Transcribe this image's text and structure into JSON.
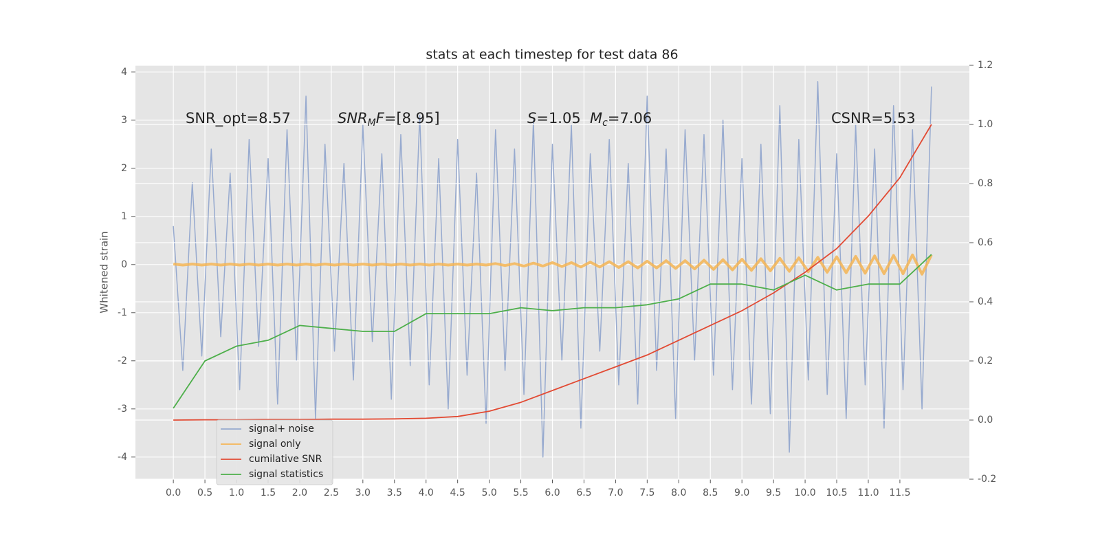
{
  "chart_data": {
    "type": "line",
    "title": "stats at each timestep for test data 86",
    "ylabel": "Whitened strain",
    "xlim": [
      -0.6,
      12.6
    ],
    "ylim": [
      -4.46,
      4.14
    ],
    "y2lim": [
      -0.2,
      1.2
    ],
    "xticks": [
      {
        "value": 0,
        "label": "0.0"
      },
      0.5,
      {
        "value": 1,
        "label": "1.0"
      },
      1.5,
      {
        "value": 2,
        "label": "2.0"
      },
      2.5,
      {
        "value": 3,
        "label": "3.0"
      },
      3.5,
      {
        "value": 4,
        "label": "4.0"
      },
      4.5,
      {
        "value": 5,
        "label": "5.0"
      },
      5.5,
      {
        "value": 6,
        "label": "6.0"
      },
      6.5,
      {
        "value": 7,
        "label": "7.0"
      },
      7.5,
      {
        "value": 8,
        "label": "8.0"
      },
      8.5,
      {
        "value": 9,
        "label": "9.0"
      },
      9.5,
      {
        "value": 10,
        "label": "10.0"
      },
      10.5,
      {
        "value": 11,
        "label": "11.0"
      },
      11.5
    ],
    "yticks": [
      -4,
      -3,
      -2,
      -1,
      0,
      1,
      2,
      3,
      4
    ],
    "y2ticks": [
      -0.2,
      {
        "value": 0,
        "label": "0.0"
      },
      0.2,
      0.4,
      0.6,
      0.8,
      {
        "value": 1,
        "label": "1.0"
      },
      1.2
    ],
    "grid": true,
    "legend": "lower left",
    "annotations": [
      [
        {
          "text": "SNR_opt=8.57"
        }
      ],
      [
        {
          "text": "SNR",
          "style": "italic"
        },
        {
          "text": "M",
          "style": "sub-italic"
        },
        {
          "text": "F",
          "style": "italic"
        },
        {
          "text": "=[8.95]"
        }
      ],
      [
        {
          "text": "S",
          "style": "italic"
        },
        {
          "text": "=1.05"
        }
      ],
      [
        {
          "text": "M",
          "style": "italic"
        },
        {
          "text": "c",
          "style": "sub-italic"
        },
        {
          "text": "=7.06"
        }
      ],
      [
        {
          "text": "CSNR=5.53"
        }
      ]
    ],
    "series": [
      {
        "name": "signal+ noise",
        "color": "#97aacf",
        "x": [
          0,
          0.15,
          0.3,
          0.45,
          0.6,
          0.75,
          0.9,
          1.05,
          1.2,
          1.35,
          1.5,
          1.65,
          1.8,
          1.95,
          2.1,
          2.25,
          2.4,
          2.55,
          2.7,
          2.85,
          3,
          3.15,
          3.3,
          3.45,
          3.6,
          3.75,
          3.9,
          4.05,
          4.2,
          4.35,
          4.5,
          4.65,
          4.8,
          4.95,
          5.1,
          5.25,
          5.4,
          5.55,
          5.7,
          5.85,
          6,
          6.15,
          6.3,
          6.45,
          6.6,
          6.75,
          6.9,
          7.05,
          7.2,
          7.35,
          7.5,
          7.65,
          7.8,
          7.95,
          8.1,
          8.25,
          8.4,
          8.55,
          8.7,
          8.85,
          9,
          9.15,
          9.3,
          9.45,
          9.6,
          9.75,
          9.9,
          10.05,
          10.2,
          10.35,
          10.5,
          10.65,
          10.8,
          10.95,
          11.1,
          11.25,
          11.4,
          11.55,
          11.7,
          11.85,
          12
        ],
        "values": [
          0.8,
          -2.2,
          1.7,
          -1.9,
          2.4,
          -1.5,
          1.9,
          -2.6,
          2.6,
          -1.7,
          2.2,
          -2.9,
          2.8,
          -2.0,
          3.5,
          -3.2,
          2.5,
          -1.8,
          2.1,
          -2.4,
          2.9,
          -1.6,
          2.3,
          -2.8,
          2.7,
          -2.1,
          3.1,
          -2.5,
          2.2,
          -3.0,
          2.6,
          -2.3,
          1.9,
          -3.3,
          2.8,
          -2.2,
          2.4,
          -2.7,
          3.0,
          -4.0,
          2.5,
          -2.0,
          2.9,
          -3.4,
          2.3,
          -1.8,
          2.6,
          -2.5,
          2.1,
          -2.9,
          3.5,
          -2.2,
          2.4,
          -3.2,
          2.8,
          -2.0,
          2.7,
          -2.3,
          3.0,
          -2.6,
          2.2,
          -2.9,
          2.5,
          -3.1,
          3.3,
          -3.9,
          2.6,
          -2.4,
          3.8,
          -2.7,
          2.3,
          -3.2,
          2.9,
          -2.5,
          2.4,
          -3.4,
          3.3,
          -2.6,
          2.8,
          -3.0,
          3.7
        ]
      },
      {
        "name": "signal only",
        "color": "#f5b555",
        "x": [
          0,
          0.15,
          0.3,
          0.45,
          0.6,
          0.75,
          0.9,
          1.05,
          1.2,
          1.35,
          1.5,
          1.65,
          1.8,
          1.95,
          2.1,
          2.25,
          2.4,
          2.55,
          2.7,
          2.85,
          3,
          3.15,
          3.3,
          3.45,
          3.6,
          3.75,
          3.9,
          4.05,
          4.2,
          4.35,
          4.5,
          4.65,
          4.8,
          4.95,
          5.1,
          5.25,
          5.4,
          5.55,
          5.7,
          5.85,
          6,
          6.15,
          6.3,
          6.45,
          6.6,
          6.75,
          6.9,
          7.05,
          7.2,
          7.35,
          7.5,
          7.65,
          7.8,
          7.95,
          8.1,
          8.25,
          8.4,
          8.55,
          8.7,
          8.85,
          9,
          9.15,
          9.3,
          9.45,
          9.6,
          9.75,
          9.9,
          10.05,
          10.2,
          10.35,
          10.5,
          10.65,
          10.8,
          10.95,
          11.1,
          11.25,
          11.4,
          11.55,
          11.7,
          11.85,
          12
        ],
        "values": [
          0.01,
          -0.01,
          0.01,
          -0.01,
          0.01,
          -0.01,
          0.01,
          -0.01,
          0.01,
          -0.01,
          0.01,
          -0.01,
          0.01,
          -0.01,
          0.01,
          -0.01,
          0.01,
          -0.01,
          0.01,
          -0.01,
          0.01,
          -0.01,
          0.01,
          -0.01,
          0.01,
          -0.01,
          0.01,
          -0.01,
          0.01,
          -0.01,
          0.01,
          -0.01,
          0.01,
          -0.01,
          0.02,
          -0.02,
          0.02,
          -0.03,
          0.03,
          -0.03,
          0.04,
          -0.04,
          0.04,
          -0.05,
          0.05,
          -0.05,
          0.06,
          -0.06,
          0.06,
          -0.07,
          0.07,
          -0.07,
          0.08,
          -0.08,
          0.08,
          -0.09,
          0.09,
          -0.1,
          0.1,
          -0.11,
          0.11,
          -0.12,
          0.12,
          -0.13,
          0.13,
          -0.14,
          0.14,
          -0.15,
          0.15,
          -0.16,
          0.16,
          -0.17,
          0.17,
          -0.18,
          0.18,
          -0.19,
          0.19,
          -0.19,
          0.2,
          -0.2,
          0.2
        ]
      },
      {
        "name": "cumilative SNR",
        "color": "#e24a33",
        "axis": "y2",
        "x": [
          0,
          0.5,
          1,
          1.5,
          2,
          2.5,
          3,
          3.5,
          4,
          4.5,
          5,
          5.5,
          6,
          6.5,
          7,
          7.5,
          8,
          8.5,
          9,
          9.5,
          10,
          10.5,
          11,
          11.5,
          12
        ],
        "values": [
          0,
          0.001,
          0.001,
          0.002,
          0.002,
          0.003,
          0.003,
          0.004,
          0.006,
          0.012,
          0.03,
          0.06,
          0.1,
          0.14,
          0.18,
          0.22,
          0.27,
          0.32,
          0.37,
          0.43,
          0.5,
          0.58,
          0.69,
          0.82,
          1.0
        ]
      },
      {
        "name": "signal statistics",
        "color": "#4daf4a",
        "axis": "y2",
        "x": [
          0,
          0.5,
          1,
          1.5,
          2,
          2.5,
          3,
          3.5,
          4,
          4.5,
          5,
          5.5,
          6,
          6.5,
          7,
          7.5,
          8,
          8.5,
          9,
          9.5,
          10,
          10.5,
          11,
          11.5,
          12
        ],
        "values": [
          0.04,
          0.2,
          0.25,
          0.27,
          0.32,
          0.31,
          0.3,
          0.3,
          0.36,
          0.36,
          0.36,
          0.38,
          0.37,
          0.38,
          0.38,
          0.39,
          0.41,
          0.46,
          0.46,
          0.44,
          0.49,
          0.44,
          0.46,
          0.46,
          0.56
        ]
      }
    ]
  }
}
